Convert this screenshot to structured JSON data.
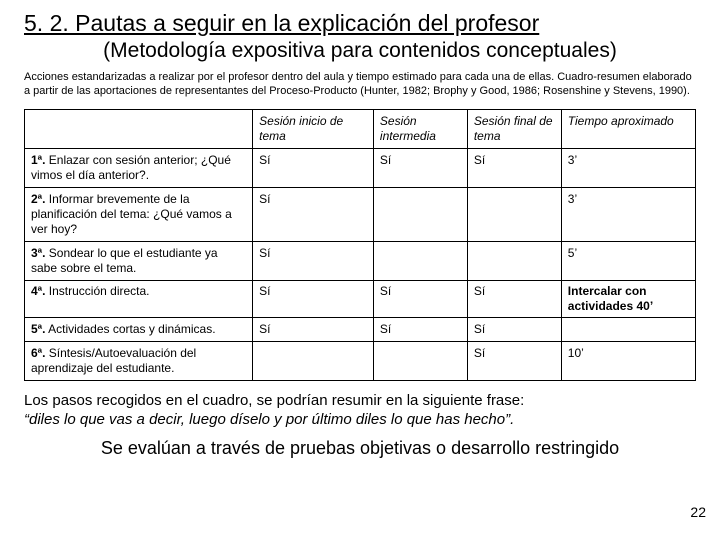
{
  "title": "5. 2. Pautas a seguir en la explicación del profesor",
  "subtitle": "(Metodología expositiva para contenidos conceptuales)",
  "caption": "Acciones estandarizadas a realizar por el profesor dentro del aula y tiempo estimado para cada una de ellas. Cuadro-resumen elaborado a partir de las aportaciones de representantes del Proceso-Producto (Hunter, 1982; Brophy y Good, 1986; Rosenshine y Stevens, 1990).",
  "table": {
    "columns": [
      "",
      "Sesión inicio de tema",
      "Sesión intermedia",
      "Sesión final de tema",
      "Tiempo aproximado"
    ],
    "rows": [
      {
        "label_ord": "1ª.",
        "label_rest": " Enlazar con sesión anterior; ¿Qué vimos el día anterior?.",
        "c1": "Sí",
        "c2": "Sí",
        "c3": "Sí",
        "c4": "3’"
      },
      {
        "label_ord": "2ª.",
        "label_rest": " Informar brevemente de la planificación del tema: ¿Qué vamos a ver hoy?",
        "c1": "Sí",
        "c2": "",
        "c3": "",
        "c4": "3’"
      },
      {
        "label_ord": "3ª.",
        "label_rest": " Sondear lo que el estudiante ya sabe sobre el tema.",
        "c1": "Sí",
        "c2": "",
        "c3": "",
        "c4": "5’"
      },
      {
        "label_ord": "4ª.",
        "label_rest": " Instrucción directa.",
        "c1": "Sí",
        "c2": "Sí",
        "c3": "Sí",
        "c4": "Intercalar con actividades 40’",
        "tight": true,
        "c4_bold": true
      },
      {
        "label_ord": "5ª.",
        "label_rest": " Actividades cortas y dinámicas.",
        "c1": "Sí",
        "c2": "Sí",
        "c3": "Sí",
        "c4": ""
      },
      {
        "label_ord": "6ª.",
        "label_rest": " Síntesis/Autoevaluación del aprendizaje del estudiante.",
        "c1": "",
        "c2": "",
        "c3": "Sí",
        "c4": "10’"
      }
    ]
  },
  "closing1_a": "Los pasos recogidos en el cuadro, se podrían resumir en la siguiente frase:",
  "closing1_b": "“diles lo que vas a decir, luego díselo y por último diles lo que has hecho”.",
  "closing2": "Se evalúan a través de pruebas objetivas o desarrollo restringido",
  "pagenum": "22"
}
